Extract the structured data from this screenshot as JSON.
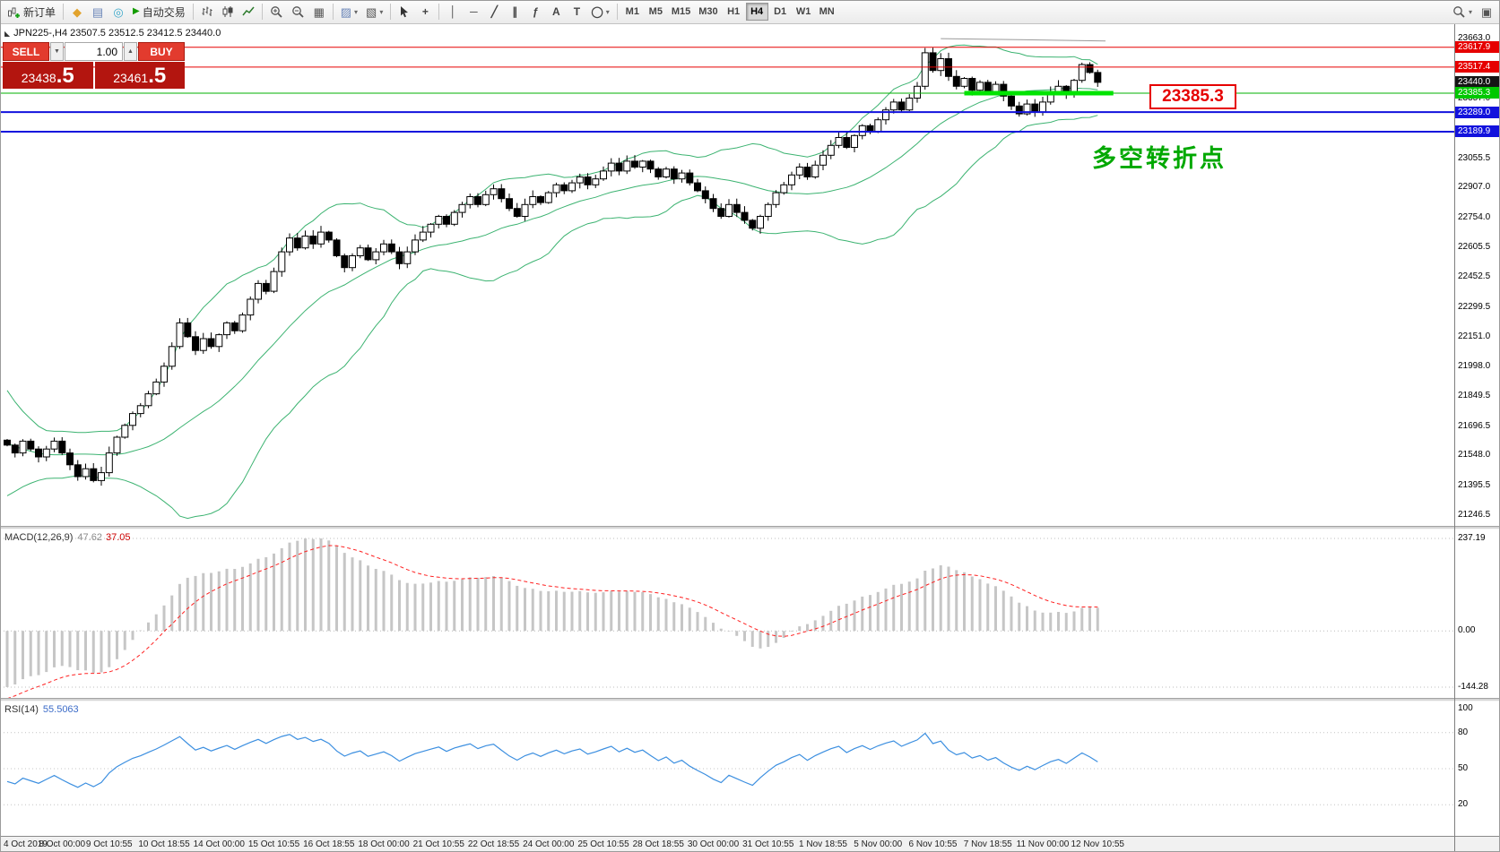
{
  "toolbar": {
    "new_order_label": "新订单",
    "autotrading_label": "自动交易",
    "timeframes": [
      "M1",
      "M5",
      "M15",
      "M30",
      "H1",
      "H4",
      "D1",
      "W1",
      "MN"
    ],
    "active_timeframe": "H4",
    "glyphs": {
      "favorites": "◆",
      "terminal": "▤",
      "community": "◎",
      "play": "▶",
      "tile": "▦",
      "indicators": "▨",
      "templates": "▧",
      "crosshair": "+",
      "vline": "│",
      "hline": "─",
      "trendline": "╱",
      "channel": "∥",
      "fibonacci": "ƒ",
      "text": "A",
      "label": "T",
      "shapes": "◯",
      "caret": "▾",
      "layout": "▣"
    }
  },
  "chart": {
    "collapse_glyph": "◣",
    "symbol_info": "JPN225-,H4  23507.5 23512.5 23412.5 23440.0",
    "trade_panel": {
      "sell_label": "SELL",
      "buy_label": "BUY",
      "volume": "1.00",
      "dec_glyph": "▼",
      "inc_glyph": "▲",
      "sell_price_int": "23438",
      "sell_price_dec": ".5",
      "buy_price_int": "23461",
      "buy_price_dec": ".5"
    },
    "annotation_price": "23385.3",
    "annotation_text": "多空转折点"
  },
  "chart_data": {
    "type": "candlestick",
    "symbol": "JPN225-",
    "timeframe": "H4",
    "y_range": [
      21190,
      23735
    ],
    "closes": [
      21600,
      21560,
      21620,
      21580,
      21540,
      21580,
      21620,
      21560,
      21500,
      21440,
      21480,
      21420,
      21460,
      21560,
      21640,
      21700,
      21760,
      21800,
      21860,
      21920,
      22000,
      22100,
      22220,
      22150,
      22080,
      22140,
      22100,
      22160,
      22220,
      22180,
      22260,
      22340,
      22420,
      22380,
      22480,
      22580,
      22650,
      22600,
      22660,
      22620,
      22680,
      22640,
      22560,
      22500,
      22560,
      22600,
      22540,
      22580,
      22620,
      22580,
      22520,
      22580,
      22640,
      22680,
      22720,
      22760,
      22720,
      22780,
      22820,
      22860,
      22820,
      22870,
      22900,
      22850,
      22800,
      22760,
      22820,
      22860,
      22830,
      22880,
      22920,
      22890,
      22930,
      22960,
      22920,
      22950,
      22990,
      23030,
      22990,
      23040,
      23010,
      23040,
      23000,
      22960,
      23000,
      22950,
      22980,
      22930,
      22890,
      22850,
      22800,
      22760,
      22820,
      22780,
      22740,
      22700,
      22760,
      22820,
      22880,
      22920,
      22970,
      23010,
      22960,
      23020,
      23070,
      23120,
      23160,
      23110,
      23170,
      23220,
      23190,
      23250,
      23300,
      23340,
      23300,
      23360,
      23420,
      23590,
      23500,
      23560,
      23470,
      23420,
      23460,
      23400,
      23440,
      23390,
      23430,
      23370,
      23320,
      23280,
      23330,
      23290,
      23340,
      23390,
      23420,
      23380,
      23450,
      23530,
      23490,
      23440
    ],
    "candle_colors": {
      "up": "#ffffff",
      "down": "#000000",
      "outline": "#000000"
    },
    "bollinger": {
      "period": 20,
      "deviation": 2,
      "color": "#3cb371"
    },
    "y_axis_labels": [
      "23663.0",
      "23357.0",
      "23055.5",
      "22907.0",
      "22754.0",
      "22605.5",
      "22452.5",
      "22299.5",
      "22151.0",
      "21998.0",
      "21849.5",
      "21696.5",
      "21548.0",
      "21395.5",
      "21246.5"
    ],
    "levels": [
      {
        "price": 23617.9,
        "label": "23617.9",
        "color": "#e60000",
        "box": "#e60000",
        "lw": 1
      },
      {
        "price": 23517.4,
        "label": "23517.4",
        "color": "#e60000",
        "box": "#e60000",
        "lw": 1
      },
      {
        "price": 23440.0,
        "label": "23440.0",
        "color": "#151515",
        "box": "#151515",
        "line": false
      },
      {
        "price": 23385.3,
        "label": "23385.3",
        "color": "#00b000",
        "box": "#00c800",
        "lw": 1,
        "segment": {
          "from": 122,
          "to": 141,
          "width": 5,
          "color": "#00e400"
        }
      },
      {
        "price": 23289.0,
        "label": "23289.0",
        "color": "#1212dd",
        "box": "#1212dd",
        "lw": 2
      },
      {
        "price": 23189.9,
        "label": "23189.9",
        "color": "#1212dd",
        "box": "#1212dd",
        "lw": 2
      }
    ],
    "trendline": {
      "i1": 119,
      "p1": 23662,
      "i2": 140,
      "p2": 23650,
      "color": "#9a9a9a"
    },
    "x_axis_labels": [
      {
        "t": "4 Oct 2019",
        "i": 0
      },
      {
        "t": "8 Oct 00:00",
        "i": 7
      },
      {
        "t": "9 Oct 10:55",
        "i": 13
      },
      {
        "t": "10 Oct 18:55",
        "i": 20
      },
      {
        "t": "14 Oct 00:00",
        "i": 27
      },
      {
        "t": "15 Oct 10:55",
        "i": 34
      },
      {
        "t": "16 Oct 18:55",
        "i": 41
      },
      {
        "t": "18 Oct 00:00",
        "i": 48
      },
      {
        "t": "21 Oct 10:55",
        "i": 55
      },
      {
        "t": "22 Oct 18:55",
        "i": 62
      },
      {
        "t": "24 Oct 00:00",
        "i": 69
      },
      {
        "t": "25 Oct 10:55",
        "i": 76
      },
      {
        "t": "28 Oct 18:55",
        "i": 83
      },
      {
        "t": "30 Oct 00:00",
        "i": 90
      },
      {
        "t": "31 Oct 10:55",
        "i": 97
      },
      {
        "t": "1 Nov 18:55",
        "i": 104
      },
      {
        "t": "5 Nov 00:00",
        "i": 111
      },
      {
        "t": "6 Nov 10:55",
        "i": 118
      },
      {
        "t": "7 Nov 18:55",
        "i": 125
      },
      {
        "t": "11 Nov 00:00",
        "i": 132
      },
      {
        "t": "12 Nov 10:55",
        "i": 139
      }
    ],
    "macd": {
      "name": "MACD(12,26,9)",
      "value_main": "47.62",
      "value_signal": "37.05",
      "axis": [
        "237.19",
        "0.00",
        "-144.28"
      ],
      "bar_color": "#c6c6c6",
      "signal_color": "#ff2020"
    },
    "rsi": {
      "name": "RSI(14)",
      "value": "55.5063",
      "axis": [
        "100",
        "80",
        "50",
        "20"
      ],
      "line_color": "#3c8fe0"
    }
  }
}
